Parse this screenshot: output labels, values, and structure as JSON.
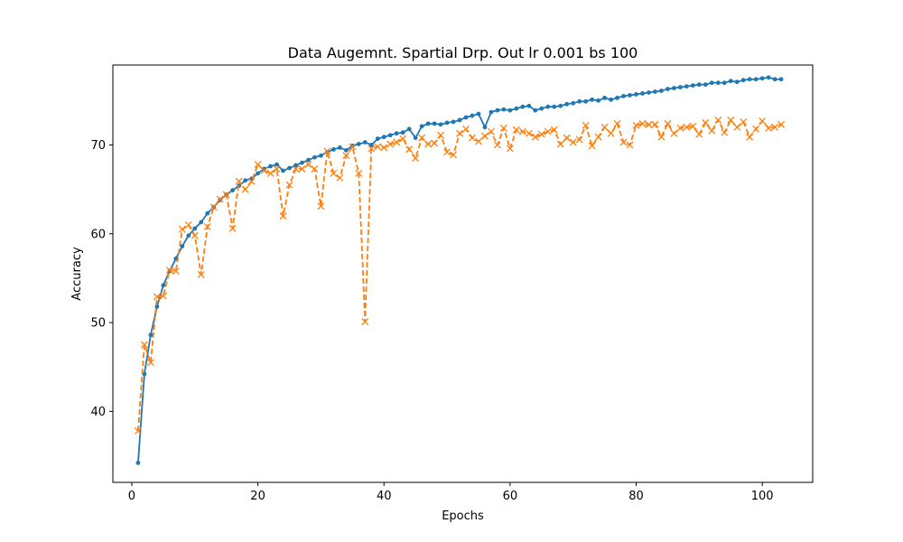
{
  "chart_data": {
    "type": "line",
    "title": "Data Augemnt. Spartial Drp. Out lr 0.001 bs 100",
    "xlabel": "Epochs",
    "ylabel": "Accuracy",
    "xlim": [
      -3,
      108
    ],
    "ylim": [
      32,
      79
    ],
    "xticks": [
      0,
      20,
      40,
      60,
      80,
      100
    ],
    "yticks": [
      40,
      50,
      60,
      70
    ],
    "grid": false,
    "legend": "none",
    "series": [
      {
        "color": "#1f77b4",
        "linestyle": "solid",
        "marker": "dot",
        "x": [
          1,
          2,
          3,
          4,
          5,
          6,
          7,
          8,
          9,
          10,
          11,
          12,
          13,
          14,
          15,
          16,
          17,
          18,
          19,
          20,
          21,
          22,
          23,
          24,
          25,
          26,
          27,
          28,
          29,
          30,
          31,
          32,
          33,
          34,
          35,
          36,
          37,
          38,
          39,
          40,
          41,
          42,
          43,
          44,
          45,
          46,
          47,
          48,
          49,
          50,
          51,
          52,
          53,
          54,
          55,
          56,
          57,
          58,
          59,
          60,
          61,
          62,
          63,
          64,
          65,
          66,
          67,
          68,
          69,
          70,
          71,
          72,
          73,
          74,
          75,
          76,
          77,
          78,
          79,
          80,
          81,
          82,
          83,
          84,
          85,
          86,
          87,
          88,
          89,
          90,
          91,
          92,
          93,
          94,
          95,
          96,
          97,
          98,
          99,
          100,
          101,
          102,
          103
        ],
        "y": [
          34.2,
          44.2,
          48.6,
          51.8,
          54.2,
          55.8,
          57.2,
          58.6,
          59.8,
          60.6,
          61.3,
          62.3,
          63.0,
          63.8,
          64.4,
          64.9,
          65.4,
          66.0,
          66.2,
          66.8,
          67.3,
          67.6,
          67.8,
          67.1,
          67.4,
          67.7,
          68.0,
          68.3,
          68.6,
          68.8,
          69.2,
          69.5,
          69.7,
          69.4,
          69.9,
          70.1,
          70.3,
          70.0,
          70.7,
          70.9,
          71.1,
          71.3,
          71.4,
          71.8,
          70.8,
          72.1,
          72.4,
          72.4,
          72.3,
          72.5,
          72.6,
          72.8,
          73.1,
          73.3,
          73.5,
          72.0,
          73.7,
          73.9,
          74.0,
          73.9,
          74.1,
          74.3,
          74.4,
          73.9,
          74.1,
          74.3,
          74.3,
          74.4,
          74.6,
          74.7,
          74.9,
          74.9,
          75.1,
          75.0,
          75.3,
          75.1,
          75.3,
          75.5,
          75.6,
          75.7,
          75.8,
          75.9,
          76.0,
          76.1,
          76.3,
          76.4,
          76.5,
          76.6,
          76.7,
          76.8,
          76.8,
          77.0,
          77.0,
          77.0,
          77.2,
          77.1,
          77.3,
          77.4,
          77.4,
          77.5,
          77.6,
          77.4,
          77.4
        ]
      },
      {
        "color": "#ff7f0e",
        "linestyle": "dashed",
        "marker": "x",
        "x": [
          1,
          2,
          3,
          4,
          5,
          6,
          7,
          8,
          9,
          10,
          11,
          12,
          13,
          14,
          15,
          16,
          17,
          18,
          19,
          20,
          21,
          22,
          23,
          24,
          25,
          26,
          27,
          28,
          29,
          30,
          31,
          32,
          33,
          34,
          35,
          36,
          37,
          38,
          39,
          40,
          41,
          42,
          43,
          44,
          45,
          46,
          47,
          48,
          49,
          50,
          51,
          52,
          53,
          54,
          55,
          56,
          57,
          58,
          59,
          60,
          61,
          62,
          63,
          64,
          65,
          66,
          67,
          68,
          69,
          70,
          71,
          72,
          73,
          74,
          75,
          76,
          77,
          78,
          79,
          80,
          81,
          82,
          83,
          84,
          85,
          86,
          87,
          88,
          89,
          90,
          91,
          92,
          93,
          94,
          95,
          96,
          97,
          98,
          99,
          100,
          101,
          102,
          103
        ],
        "y": [
          37.8,
          47.5,
          45.5,
          52.9,
          53.0,
          55.9,
          55.8,
          60.5,
          61.0,
          59.8,
          55.4,
          60.8,
          63.0,
          63.9,
          64.4,
          60.6,
          65.9,
          65.0,
          65.9,
          67.8,
          67.1,
          66.8,
          67.3,
          62.0,
          65.5,
          67.3,
          67.3,
          67.8,
          67.3,
          63.1,
          69.3,
          66.8,
          66.3,
          68.8,
          69.8,
          66.8,
          50.1,
          69.6,
          69.8,
          69.7,
          70.1,
          70.3,
          70.7,
          69.5,
          68.5,
          70.8,
          70.1,
          70.2,
          71.1,
          69.2,
          68.9,
          71.3,
          71.8,
          70.8,
          70.4,
          71.0,
          71.5,
          70.0,
          71.9,
          69.6,
          71.7,
          71.5,
          71.3,
          70.9,
          71.2,
          71.5,
          71.7,
          70.1,
          70.8,
          70.3,
          70.6,
          72.2,
          69.9,
          70.9,
          72.0,
          71.3,
          72.4,
          70.3,
          70.0,
          72.2,
          72.4,
          72.3,
          72.3,
          70.9,
          72.4,
          71.3,
          71.9,
          72.0,
          72.1,
          71.2,
          72.5,
          71.6,
          72.8,
          71.4,
          72.8,
          72.0,
          72.6,
          70.9,
          71.8,
          72.7,
          71.9,
          72.0,
          72.3
        ]
      }
    ]
  }
}
